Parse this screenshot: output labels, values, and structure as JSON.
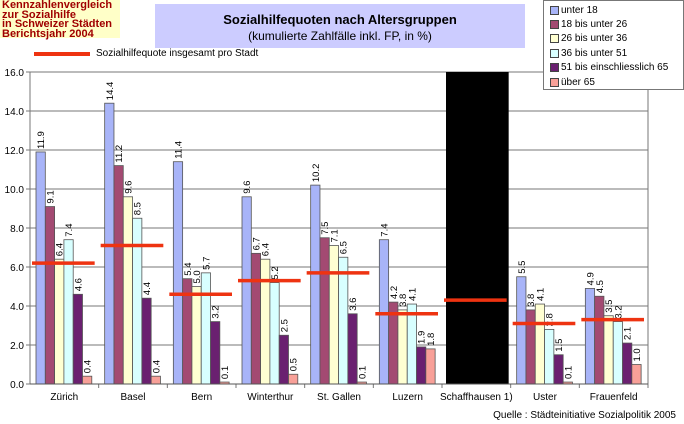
{
  "header_lines": [
    "Kennzahlenvergleich",
    "zur Sozialhilfe",
    "in Schweizer Städten",
    "Berichtsjahr 2004"
  ],
  "source": "Quelle : Städteinitiative Sozialpolitik 2005",
  "chart_data": {
    "type": "bar",
    "title": "Sozialhilfequoten nach Altersgruppen",
    "subtitle": "(kumulierte Zahlfälle inkl. FP, in %)",
    "ylim": [
      0,
      16
    ],
    "yticks": [
      "0.0",
      "2.0",
      "4.0",
      "6.0",
      "8.0",
      "10.0",
      "12.0",
      "14.0",
      "16.0"
    ],
    "grid": true,
    "legend_position": "top-right",
    "categories": [
      "Zürich",
      "Basel",
      "Bern",
      "Winterthur",
      "St. Gallen",
      "Luzern",
      "Schaffhausen 1)",
      "Uster",
      "Frauenfeld"
    ],
    "series": [
      {
        "name": "unter 18",
        "color": "#a8b4f8",
        "values": [
          11.9,
          14.4,
          11.4,
          9.6,
          10.2,
          7.4,
          null,
          5.5,
          4.9
        ],
        "labels": [
          "11.9",
          "14.4",
          "11.4",
          "9.6",
          "10.2",
          "7.4",
          "",
          "5.5",
          "4.9"
        ]
      },
      {
        "name": "18 bis unter 26",
        "color": "#a34a72",
        "values": [
          9.1,
          11.2,
          5.4,
          6.7,
          7.5,
          4.2,
          null,
          3.8,
          4.5
        ],
        "labels": [
          "9.1",
          "11.2",
          "5.4",
          "6.7",
          "7.5",
          "4.2",
          "",
          "3.8",
          "4.5"
        ]
      },
      {
        "name": "26 bis unter 36",
        "color": "#ffffd2",
        "values": [
          6.4,
          9.6,
          5.0,
          6.4,
          7.1,
          3.8,
          null,
          4.1,
          3.5
        ],
        "labels": [
          "6.4",
          "9.6",
          "5.0",
          "6.4",
          "7.1",
          "3.8",
          "",
          "4.1",
          "3.5"
        ]
      },
      {
        "name": "36 bis unter 51",
        "color": "#d8ffff",
        "values": [
          7.4,
          8.5,
          5.7,
          5.2,
          6.5,
          4.1,
          null,
          2.8,
          3.2
        ],
        "labels": [
          "7.4",
          "8.5",
          "5.7",
          "5.2",
          "6.5",
          "4.1",
          "",
          "2.8",
          "3.2"
        ]
      },
      {
        "name": "51 bis einschliesslich 65",
        "color": "#6a2070",
        "values": [
          4.6,
          4.4,
          3.2,
          2.5,
          3.6,
          1.9,
          null,
          1.5,
          2.1
        ],
        "labels": [
          "4.6",
          "4.4",
          "3.2",
          "2.5",
          "3.6",
          "1.9",
          "",
          "1.5",
          "2.1"
        ]
      },
      {
        "name": "über 65",
        "color": "#f8a098",
        "values": [
          0.4,
          0.4,
          0.1,
          0.5,
          0.1,
          1.8,
          null,
          0.1,
          1.0
        ],
        "labels": [
          "0.4",
          "0.4",
          "0.1",
          "0.5",
          "0.1",
          "1.8",
          "",
          "0.1",
          "1.0"
        ]
      }
    ],
    "total_series": {
      "name": "Sozialhilfequote insgesamt pro Stadt",
      "color": "#ee3311",
      "values": [
        6.2,
        7.1,
        4.6,
        5.3,
        5.7,
        3.6,
        4.3,
        3.1,
        3.3
      ]
    },
    "masked_category": "Schaffhausen 1)"
  }
}
